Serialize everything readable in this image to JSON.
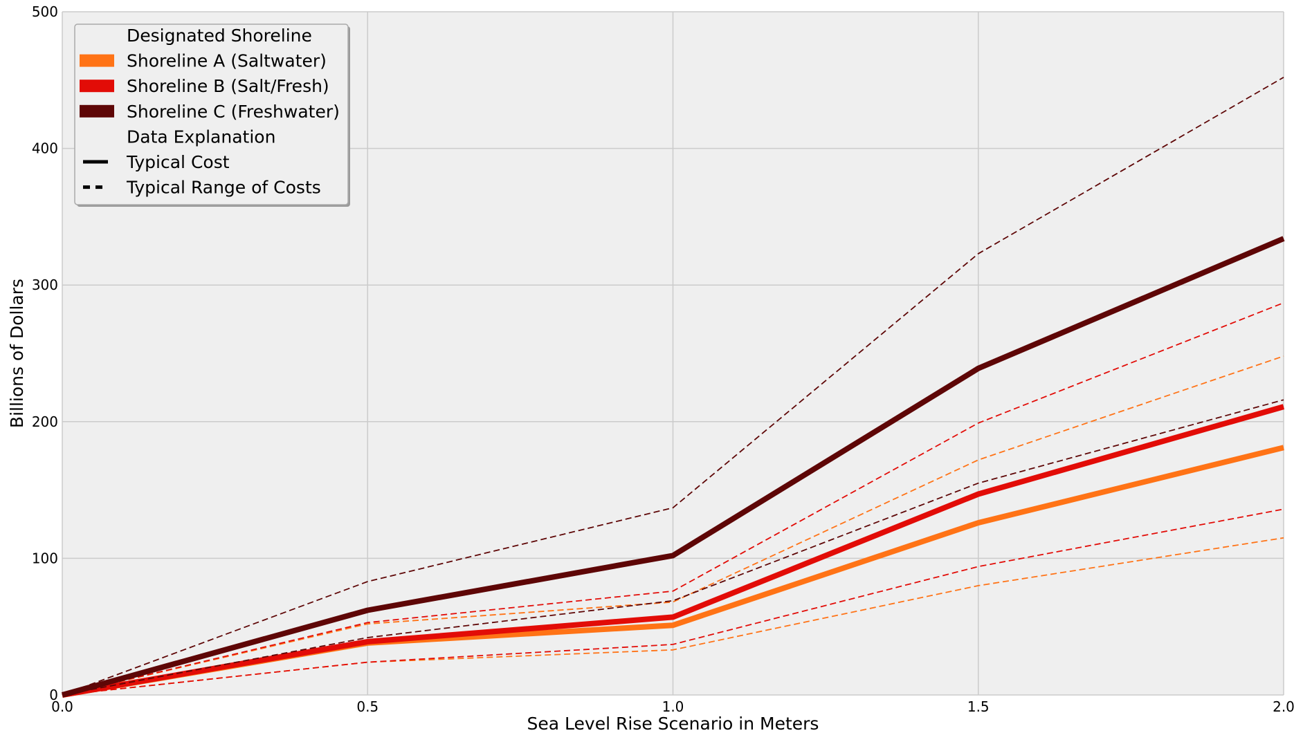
{
  "chart_data": {
    "type": "line",
    "title": "",
    "xlabel": "Sea Level Rise Scenario in Meters",
    "ylabel": "Billions of Dollars",
    "xlim": [
      0.0,
      2.0
    ],
    "ylim": [
      0,
      500
    ],
    "xticks": [
      "0.0",
      "0.5",
      "1.0",
      "1.5",
      "2.0"
    ],
    "yticks": [
      "0",
      "100",
      "200",
      "300",
      "400",
      "500"
    ],
    "grid": true,
    "background": "#efefef",
    "legend_placement": "top-left",
    "x": [
      0.0,
      0.5,
      1.0,
      1.5,
      2.0
    ],
    "series": [
      {
        "name": "Shoreline A (Saltwater)",
        "color": "#ff7316",
        "style": "solid",
        "values": [
          0,
          38,
          51,
          126,
          181
        ]
      },
      {
        "name": "Shoreline A (Saltwater)",
        "color": "#ff7316",
        "style": "dashed",
        "values": [
          0,
          52,
          68,
          172,
          248
        ]
      },
      {
        "name": "Shoreline A (Saltwater)",
        "color": "#ff7316",
        "style": "dashed",
        "values": [
          0,
          24,
          33,
          80,
          115
        ]
      },
      {
        "name": "Shoreline B (Salt/Fresh)",
        "color": "#e20c07",
        "style": "solid",
        "values": [
          0,
          39,
          57,
          147,
          211
        ]
      },
      {
        "name": "Shoreline B (Salt/Fresh)",
        "color": "#e20c07",
        "style": "dashed",
        "values": [
          0,
          53,
          76,
          199,
          287
        ]
      },
      {
        "name": "Shoreline B (Salt/Fresh)",
        "color": "#e20c07",
        "style": "dashed",
        "values": [
          0,
          24,
          37,
          94,
          136
        ]
      },
      {
        "name": "Shoreline C (Freshwater)",
        "color": "#5e0606",
        "style": "solid",
        "values": [
          0,
          62,
          102,
          239,
          334
        ]
      },
      {
        "name": "Shoreline C (Freshwater)",
        "color": "#5e0606",
        "style": "dashed",
        "values": [
          0,
          83,
          137,
          323,
          452
        ]
      },
      {
        "name": "Shoreline C (Freshwater)",
        "color": "#5e0606",
        "style": "dashed",
        "values": [
          0,
          42,
          69,
          155,
          216
        ]
      }
    ],
    "legend": {
      "entries": [
        {
          "label": "Designated Shoreline",
          "kind": "header"
        },
        {
          "label": "Shoreline A (Saltwater)",
          "kind": "patch",
          "color": "#ff7316"
        },
        {
          "label": "Shoreline B (Salt/Fresh)",
          "kind": "patch",
          "color": "#e20c07"
        },
        {
          "label": "Shoreline C (Freshwater)",
          "kind": "patch",
          "color": "#5e0606"
        },
        {
          "label": "Data Explanation",
          "kind": "header"
        },
        {
          "label": "Typical Cost",
          "kind": "solid",
          "color": "#000000"
        },
        {
          "label": "Typical Range of Costs",
          "kind": "dashed",
          "color": "#000000"
        }
      ]
    }
  }
}
